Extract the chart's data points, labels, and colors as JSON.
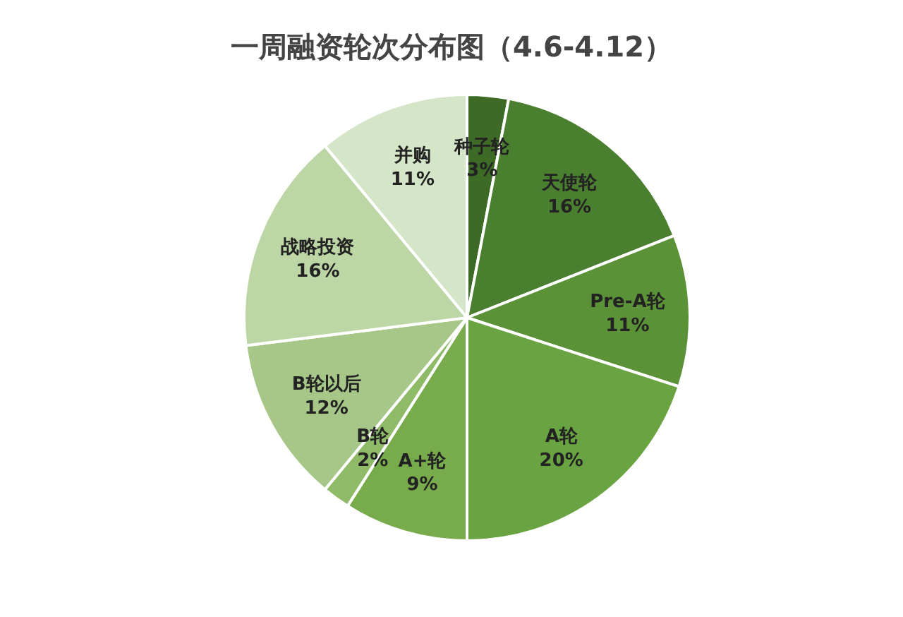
{
  "chart_data": {
    "type": "pie",
    "title": "一周融资轮次分布图（4.6-4.12）",
    "categories": [
      "种子轮",
      "天使轮",
      "Pre-A轮",
      "A轮",
      "A+轮",
      "B轮",
      "B轮以后",
      "战略投资",
      "并购"
    ],
    "values": [
      3,
      16,
      11,
      20,
      9,
      2,
      12,
      16,
      11
    ],
    "value_labels": [
      "3%",
      "16%",
      "11%",
      "20%",
      "9%",
      "2%",
      "12%",
      "16%",
      "11%"
    ],
    "colors": [
      "#3d6b26",
      "#4b7f30",
      "#5b9237",
      "#6aa341",
      "#78ab4c",
      "#8fba68",
      "#a6c788",
      "#bcd6a5",
      "#d5e5c8"
    ],
    "legend": false
  }
}
